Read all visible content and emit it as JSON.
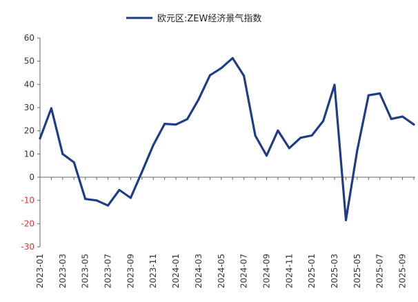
{
  "chart_data": {
    "type": "line",
    "title": "",
    "xlabel": "",
    "ylabel": "",
    "legend": "top-center",
    "grid": false,
    "ylim": [
      -30,
      60
    ],
    "yticks": [
      "60",
      "50",
      "40",
      "30",
      "20",
      "10",
      "0",
      "-10",
      "-20",
      "-30"
    ],
    "ytick_values": [
      60,
      50,
      40,
      30,
      20,
      10,
      0,
      -10,
      -20,
      -30
    ],
    "xtick_labels": [
      "2023-01",
      "2023-03",
      "2023-05",
      "2023-07",
      "2023-09",
      "2023-11",
      "2024-01",
      "2024-03",
      "2024-05",
      "2024-07",
      "2024-09",
      "2024-11",
      "2025-01",
      "2025-03",
      "2025-05",
      "2025-07",
      "2025-09"
    ],
    "categories": [
      "2023-01",
      "2023-02",
      "2023-03",
      "2023-04",
      "2023-05",
      "2023-06",
      "2023-07",
      "2023-08",
      "2023-09",
      "2023-10",
      "2023-11",
      "2023-12",
      "2024-01",
      "2024-02",
      "2024-03",
      "2024-04",
      "2024-05",
      "2024-06",
      "2024-07",
      "2024-08",
      "2024-09",
      "2024-10",
      "2024-11",
      "2024-12",
      "2025-01",
      "2025-02",
      "2025-03",
      "2025-04",
      "2025-05",
      "2025-06",
      "2025-07",
      "2025-08",
      "2025-09",
      "2025-10"
    ],
    "series": [
      {
        "name": "欧元区:ZEW经济景气指数",
        "color": "#1f3c88",
        "values": [
          16.7,
          29.7,
          10.0,
          6.4,
          -9.4,
          -10.0,
          -12.2,
          -5.5,
          -8.9,
          2.3,
          13.8,
          23.0,
          22.7,
          25.0,
          33.5,
          43.9,
          47.0,
          51.3,
          43.7,
          17.9,
          9.3,
          20.1,
          12.5,
          17.0,
          18.0,
          24.2,
          39.8,
          -18.5,
          11.6,
          35.3,
          36.1,
          25.1,
          26.1,
          22.7
        ]
      }
    ]
  }
}
